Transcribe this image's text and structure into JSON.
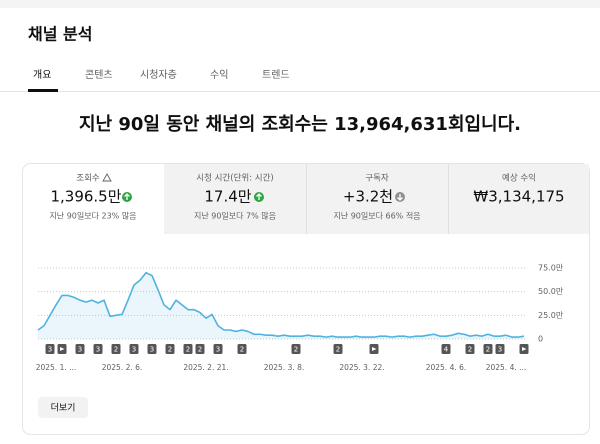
{
  "header": {
    "title": "채널 분석"
  },
  "tabs": [
    "개요",
    "콘텐츠",
    "시청자층",
    "수익",
    "트렌드"
  ],
  "headline": "지난 90일 동안 채널의 조회수는 13,964,631회입니다.",
  "metrics": [
    {
      "label": "조회수",
      "value": "1,396.5만",
      "note": "지난 90일보다 23% 많음"
    },
    {
      "label": "시청 시간(단위: 시간)",
      "value": "17.4만",
      "note": "지난 90일보다 7% 많음"
    },
    {
      "label": "구독자",
      "value": "+3.2천",
      "note": "지난 90일보다 66% 적음"
    },
    {
      "label": "예상 수익",
      "value": "₩3,134,175"
    }
  ],
  "chart_data": {
    "type": "line",
    "categories": [
      null,
      null,
      null,
      "2025. 1. ...",
      null,
      null,
      null,
      null,
      null,
      null,
      null,
      null,
      null,
      null,
      "2025. 2. 6.",
      null,
      null,
      null,
      null,
      null,
      null,
      null,
      null,
      null,
      null,
      null,
      null,
      null,
      "2025. 2. 21.",
      null,
      null,
      null,
      null,
      null,
      null,
      null,
      null,
      null,
      null,
      null,
      null,
      "2025. 3. 8.",
      null,
      null,
      null,
      null,
      null,
      null,
      null,
      null,
      null,
      null,
      null,
      null,
      "2025. 3. 22.",
      null,
      null,
      null,
      null,
      null,
      null,
      null,
      null,
      null,
      null,
      null,
      null,
      null,
      "2025. 4. 6.",
      null,
      null,
      null,
      null,
      null,
      null,
      null,
      null,
      null,
      "2025. 4. ...",
      null,
      null,
      null
    ],
    "series": [
      {
        "color": "#4fb3e0",
        "values": [
          9.5,
          14,
          25,
          36,
          46,
          46,
          44,
          41,
          39,
          41,
          38,
          41,
          24,
          25,
          26,
          41,
          57,
          62,
          70,
          67,
          52,
          36,
          31,
          41,
          36,
          31,
          31,
          28,
          22,
          26,
          14,
          9.5,
          9.5,
          8,
          9.5,
          8,
          5,
          5,
          4,
          4,
          3,
          4,
          3,
          3,
          3,
          4,
          3,
          3,
          2,
          3,
          2,
          2,
          2,
          3,
          2,
          2,
          2,
          3,
          3,
          2,
          3,
          3,
          2,
          3,
          3,
          4,
          5,
          3,
          3,
          4,
          6,
          5,
          3,
          4,
          3,
          5,
          3,
          3,
          4,
          2,
          2,
          3
        ]
      }
    ],
    "markers": [
      null,
      null,
      3,
      null,
      1,
      null,
      null,
      3,
      null,
      null,
      3,
      null,
      null,
      2,
      null,
      null,
      3,
      null,
      null,
      3,
      null,
      null,
      2,
      null,
      null,
      2,
      null,
      2,
      null,
      null,
      3,
      null,
      null,
      null,
      2,
      null,
      null,
      null,
      null,
      null,
      null,
      null,
      null,
      2,
      null,
      null,
      null,
      null,
      null,
      null,
      2,
      null,
      null,
      null,
      null,
      null,
      1,
      null,
      null,
      null,
      null,
      null,
      null,
      null,
      null,
      null,
      null,
      null,
      4,
      null,
      null,
      null,
      2,
      null,
      null,
      2,
      null,
      3,
      null,
      null,
      null,
      1
    ],
    "ylim": [
      0,
      75
    ],
    "yticks": [
      0,
      {
        "value": 25,
        "label": "25.0만"
      },
      {
        "value": 50,
        "label": "50.0만"
      },
      {
        "value": 75,
        "label": "75.0만"
      }
    ],
    "grid": true
  },
  "button": "더보기"
}
